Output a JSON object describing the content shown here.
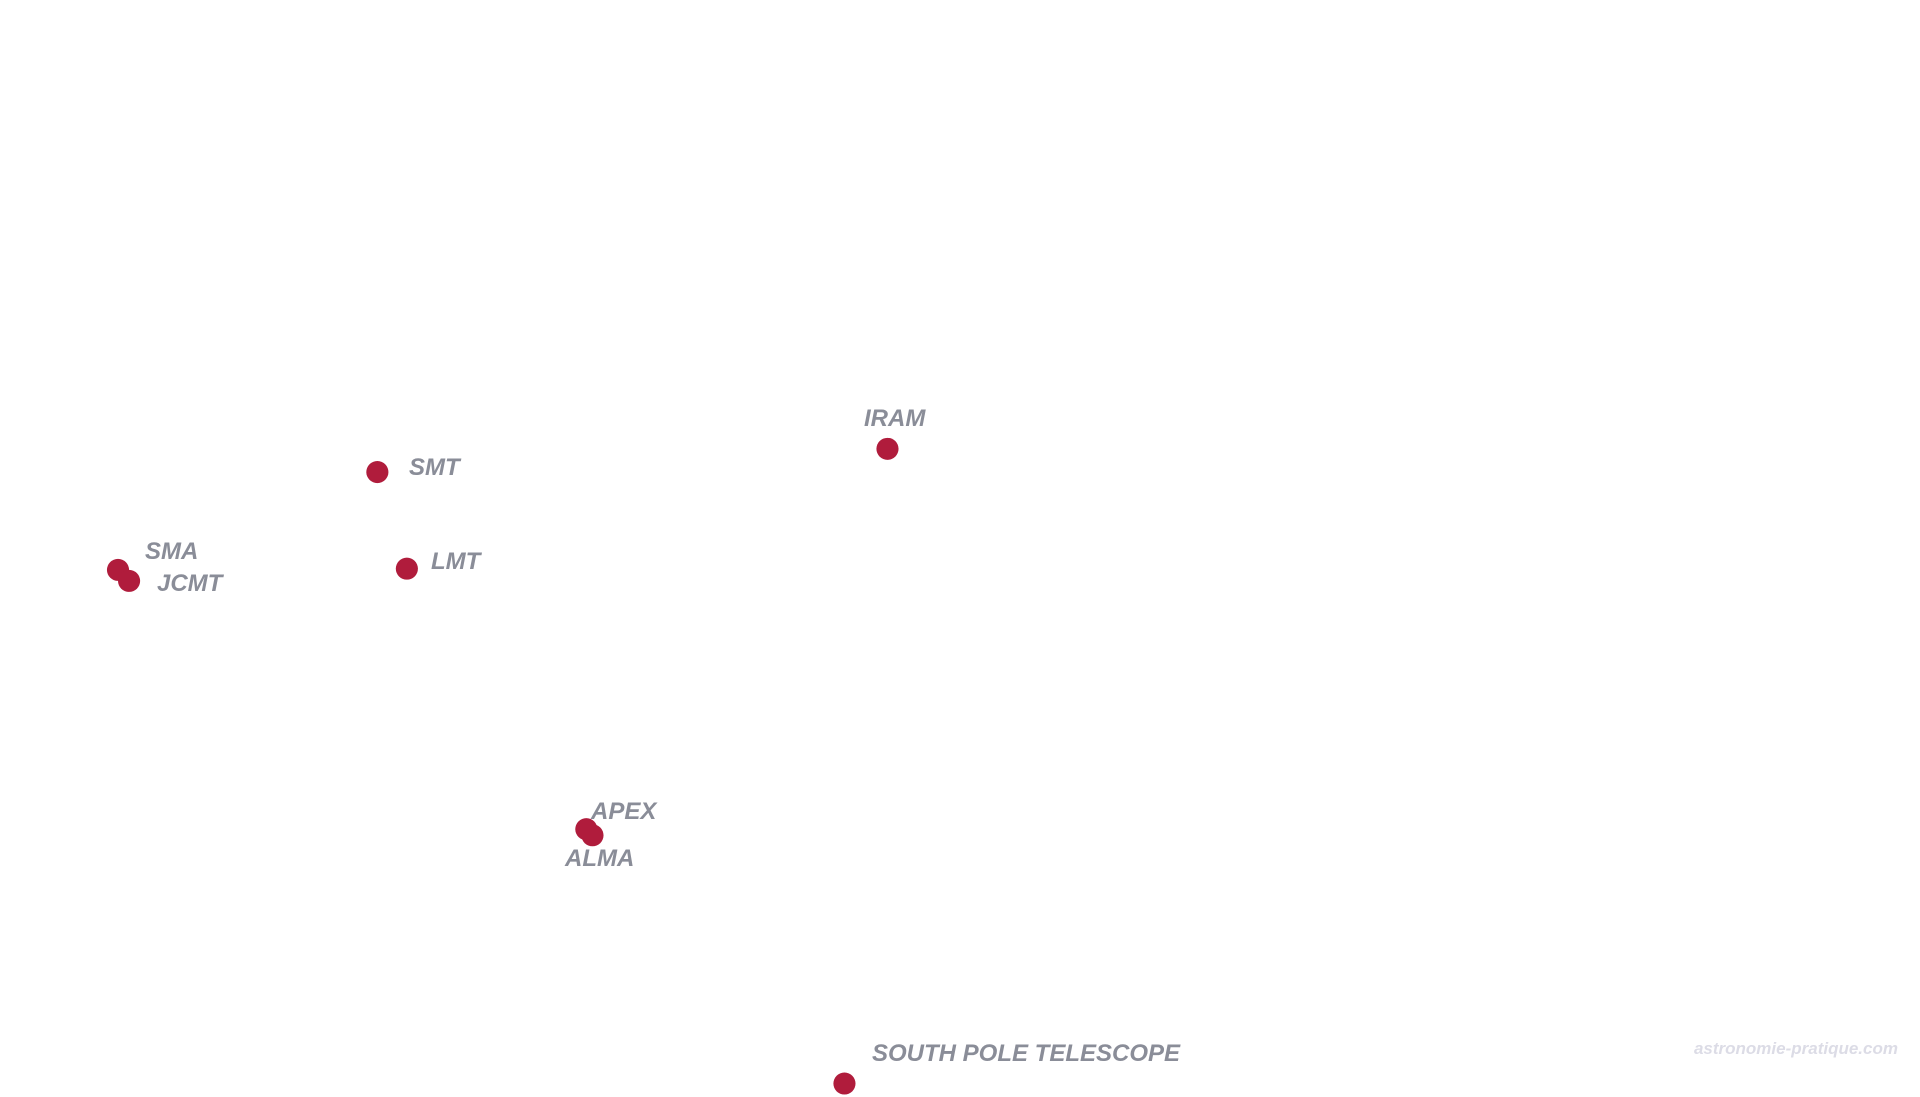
{
  "colors": {
    "land": "#1b1a44",
    "marker": "#b01c3c",
    "label": "#8a8d98",
    "background": "#ffffff",
    "watermark": "#dcdce6"
  },
  "observatories": [
    {
      "id": "sma",
      "label": "SMA"
    },
    {
      "id": "jcmt",
      "label": "JCMT"
    },
    {
      "id": "smt",
      "label": "SMT"
    },
    {
      "id": "lmt",
      "label": "LMT"
    },
    {
      "id": "iram",
      "label": "IRAM"
    },
    {
      "id": "apex",
      "label": "APEX"
    },
    {
      "id": "alma",
      "label": "ALMA"
    },
    {
      "id": "spt",
      "label": "SOUTH POLE TELESCOPE"
    }
  ],
  "watermark": "astronomie-pratique.com"
}
